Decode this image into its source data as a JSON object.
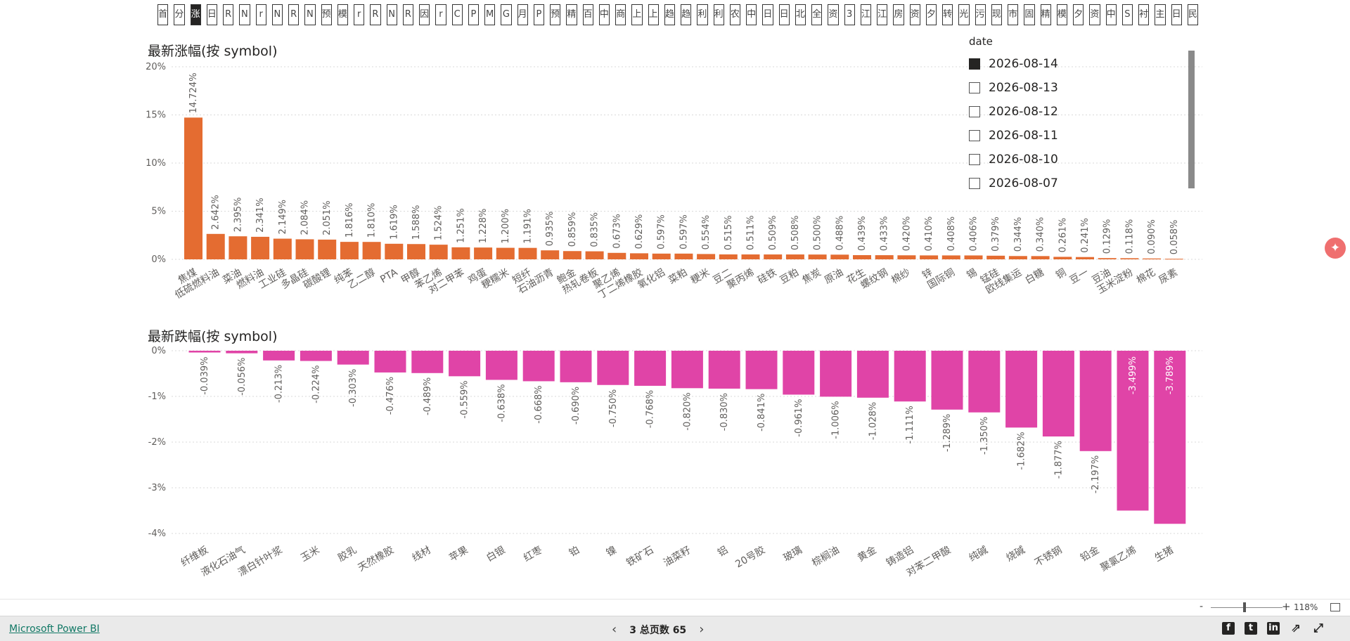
{
  "tabs": [
    {
      "label": "首",
      "active": false
    },
    {
      "label": "分",
      "active": false
    },
    {
      "label": "涨",
      "active": true
    },
    {
      "label": "日",
      "active": false
    },
    {
      "label": "R",
      "active": false
    },
    {
      "label": "N",
      "active": false
    },
    {
      "label": "r",
      "active": false
    },
    {
      "label": "N",
      "active": false
    },
    {
      "label": "R",
      "active": false
    },
    {
      "label": "N",
      "active": false
    },
    {
      "label": "预",
      "active": false
    },
    {
      "label": "模",
      "active": false
    },
    {
      "label": "r",
      "active": false
    },
    {
      "label": "R",
      "active": false
    },
    {
      "label": "N",
      "active": false
    },
    {
      "label": "R",
      "active": false
    },
    {
      "label": "因",
      "active": false
    },
    {
      "label": "r",
      "active": false
    },
    {
      "label": "C",
      "active": false
    },
    {
      "label": "P",
      "active": false
    },
    {
      "label": "M",
      "active": false
    },
    {
      "label": "G",
      "active": false
    },
    {
      "label": "月",
      "active": false
    },
    {
      "label": "P",
      "active": false
    },
    {
      "label": "预",
      "active": false
    },
    {
      "label": "精",
      "active": false
    },
    {
      "label": "百",
      "active": false
    },
    {
      "label": "中",
      "active": false
    },
    {
      "label": "商",
      "active": false
    },
    {
      "label": "上",
      "active": false
    },
    {
      "label": "上",
      "active": false
    },
    {
      "label": "趋",
      "active": false
    },
    {
      "label": "趋",
      "active": false
    },
    {
      "label": "利",
      "active": false
    },
    {
      "label": "利",
      "active": false
    },
    {
      "label": "农",
      "active": false
    },
    {
      "label": "中",
      "active": false
    },
    {
      "label": "日",
      "active": false
    },
    {
      "label": "日",
      "active": false
    },
    {
      "label": "北",
      "active": false
    },
    {
      "label": "全",
      "active": false
    },
    {
      "label": "资",
      "active": false
    },
    {
      "label": "3",
      "active": false
    },
    {
      "label": "江",
      "active": false
    },
    {
      "label": "江",
      "active": false
    },
    {
      "label": "房",
      "active": false
    },
    {
      "label": "资",
      "active": false
    },
    {
      "label": "夕",
      "active": false
    },
    {
      "label": "转",
      "active": false
    },
    {
      "label": "光",
      "active": false
    },
    {
      "label": "污",
      "active": false
    },
    {
      "label": "现",
      "active": false
    },
    {
      "label": "市",
      "active": false
    },
    {
      "label": "固",
      "active": false
    },
    {
      "label": "精",
      "active": false
    },
    {
      "label": "模",
      "active": false
    },
    {
      "label": "夕",
      "active": false
    },
    {
      "label": "资",
      "active": false
    },
    {
      "label": "中",
      "active": false
    },
    {
      "label": "S",
      "active": false
    },
    {
      "label": "衬",
      "active": false
    },
    {
      "label": "主",
      "active": false
    },
    {
      "label": "日",
      "active": false
    },
    {
      "label": "民",
      "active": false
    }
  ],
  "slicer": {
    "title": "date",
    "items": [
      {
        "label": "2026-08-14",
        "checked": true
      },
      {
        "label": "2026-08-13",
        "checked": false
      },
      {
        "label": "2026-08-12",
        "checked": false
      },
      {
        "label": "2026-08-11",
        "checked": false
      },
      {
        "label": "2026-08-10",
        "checked": false
      },
      {
        "label": "2026-08-07",
        "checked": false
      }
    ]
  },
  "chart_data": [
    {
      "type": "bar",
      "title": "最新涨幅(按 symbol)",
      "xlabel": "",
      "ylabel": "",
      "ylim": [
        0,
        20
      ],
      "ticks": [
        "0%",
        "5%",
        "10%",
        "15%",
        "20%"
      ],
      "color": "#E46C31",
      "grid": true,
      "categories": [
        "焦煤",
        "低硫燃料油",
        "菜油",
        "燃料油",
        "工业硅",
        "多晶硅",
        "碳酸锂",
        "纯苯",
        "乙二醇",
        "PTA",
        "甲醇",
        "苯乙烯",
        "对二甲苯",
        "鸡蛋",
        "粳糯米",
        "短纤",
        "石油沥青",
        "鲍金",
        "热轧卷板",
        "聚乙烯",
        "丁二烯橡胶",
        "氧化铝",
        "菜粕",
        "粳米",
        "豆二",
        "聚丙烯",
        "硅铁",
        "豆粕",
        "焦炭",
        "原油",
        "花生",
        "螺纹钢",
        "棉纱",
        "锌",
        "国际铜",
        "锡",
        "锰硅",
        "欧线集运",
        "白糖",
        "铜",
        "豆一",
        "豆油",
        "玉米淀粉",
        "棉花",
        "尿素"
      ],
      "values": [
        14.724,
        2.642,
        2.395,
        2.341,
        2.149,
        2.084,
        2.051,
        1.816,
        1.81,
        1.619,
        1.588,
        1.524,
        1.251,
        1.228,
        1.2,
        1.191,
        0.935,
        0.859,
        0.835,
        0.673,
        0.629,
        0.597,
        0.597,
        0.554,
        0.515,
        0.511,
        0.509,
        0.508,
        0.5,
        0.488,
        0.439,
        0.433,
        0.42,
        0.41,
        0.408,
        0.406,
        0.379,
        0.344,
        0.34,
        0.261,
        0.241,
        0.129,
        0.118,
        0.09,
        0.058
      ],
      "labels": [
        "14.724%",
        "2.642%",
        "2.395%",
        "2.341%",
        "2.149%",
        "2.084%",
        "2.051%",
        "1.816%",
        "1.810%",
        "1.619%",
        "1.588%",
        "1.524%",
        "1.251%",
        "1.228%",
        "1.200%",
        "1.191%",
        "0.935%",
        "0.859%",
        "0.835%",
        "0.673%",
        "0.629%",
        "0.597%",
        "0.597%",
        "0.554%",
        "0.515%",
        "0.511%",
        "0.509%",
        "0.508%",
        "0.500%",
        "0.488%",
        "0.439%",
        "0.433%",
        "0.420%",
        "0.410%",
        "0.408%",
        "0.406%",
        "0.379%",
        "0.344%",
        "0.340%",
        "0.261%",
        "0.241%",
        "0.129%",
        "0.118%",
        "0.090%",
        "0.058%"
      ]
    },
    {
      "type": "bar",
      "title": "最新跌幅(按 symbol)",
      "xlabel": "",
      "ylabel": "",
      "ylim": [
        -4,
        0
      ],
      "ticks": [
        "0%",
        "-1%",
        "-2%",
        "-3%",
        "-4%"
      ],
      "color": "#E044A7",
      "grid": true,
      "categories": [
        "纤维板",
        "液化石油气",
        "漂白针叶浆",
        "玉米",
        "胶乳",
        "天然橡胶",
        "线材",
        "苹果",
        "白银",
        "红枣",
        "铂",
        "镍",
        "铁矿石",
        "油菜籽",
        "铝",
        "20号胶",
        "玻璃",
        "棕榈油",
        "黄金",
        "铸造铝",
        "对苯二甲酸",
        "纯碱",
        "烧碱",
        "不锈钢",
        "铅金",
        "聚氯乙烯",
        "生猪"
      ],
      "values": [
        -0.039,
        -0.056,
        -0.213,
        -0.224,
        -0.303,
        -0.476,
        -0.489,
        -0.559,
        -0.638,
        -0.668,
        -0.69,
        -0.75,
        -0.768,
        -0.82,
        -0.83,
        -0.841,
        -0.961,
        -1.006,
        -1.028,
        -1.111,
        -1.289,
        -1.35,
        -1.682,
        -1.877,
        -2.197,
        -3.499,
        -3.789
      ],
      "labels": [
        "-0.039%",
        "-0.056%",
        "-0.213%",
        "-0.224%",
        "-0.303%",
        "-0.476%",
        "-0.489%",
        "-0.559%",
        "-0.638%",
        "-0.668%",
        "-0.690%",
        "-0.750%",
        "-0.768%",
        "-0.820%",
        "-0.830%",
        "-0.841%",
        "-0.961%",
        "-1.006%",
        "-1.028%",
        "-1.111%",
        "-1.289%",
        "-1.350%",
        "-1.682%",
        "-1.877%",
        "-2.197%",
        "-3.499%",
        "-3.789%"
      ]
    }
  ],
  "zoom": {
    "minus": "-",
    "plus": "+",
    "level": "118%"
  },
  "footer": {
    "brand": "Microsoft Power BI",
    "prev": "‹",
    "next": "›",
    "page_info": "3 总页数 65",
    "share": [
      {
        "icon": "facebook-icon",
        "glyph": "f"
      },
      {
        "icon": "twitter-icon",
        "glyph": "t"
      },
      {
        "icon": "linkedin-icon",
        "glyph": "in"
      },
      {
        "icon": "share-icon",
        "glyph": "⇗"
      },
      {
        "icon": "expand-icon",
        "glyph": "⤢"
      }
    ]
  }
}
